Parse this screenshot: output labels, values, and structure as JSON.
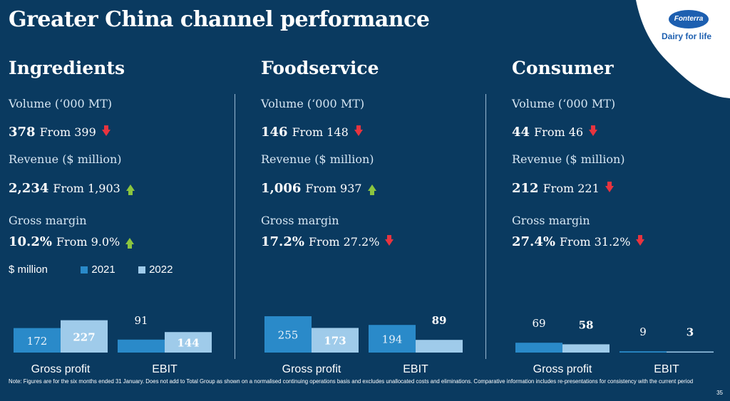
{
  "title": "Greater China channel performance",
  "logo": {
    "brand": "Fonterra",
    "tagline": "Dairy for life"
  },
  "colors": {
    "bg": "#0a3a60",
    "series_2021": "#2a8ac9",
    "series_2022": "#9fcbea",
    "down": "#e8343f",
    "up": "#8bc53f"
  },
  "legend": {
    "unit": "$ million",
    "y2021": "2021",
    "y2022": "2022"
  },
  "columns": [
    {
      "name": "Ingredients",
      "volume_label": "Volume (‘000 MT)",
      "volume_value": "378",
      "volume_from": "From 399",
      "volume_trend": "down",
      "revenue_label": "Revenue ($ million)",
      "revenue_value": "2,234",
      "revenue_from": "From 1,903",
      "revenue_trend": "up",
      "margin_label": "Gross margin",
      "margin_value": "10.2%",
      "margin_from": "From 9.0%",
      "margin_trend": "up"
    },
    {
      "name": "Foodservice",
      "volume_label": "Volume (‘000 MT)",
      "volume_value": "146",
      "volume_from": "From 148",
      "volume_trend": "down",
      "revenue_label": "Revenue ($ million)",
      "revenue_value": "1,006",
      "revenue_from": "From 937",
      "revenue_trend": "up",
      "margin_label": "Gross margin",
      "margin_value": "17.2%",
      "margin_from": "From 27.2%",
      "margin_trend": "down"
    },
    {
      "name": "Consumer",
      "volume_label": "Volume (‘000 MT)",
      "volume_value": "44",
      "volume_from": "From 46",
      "volume_trend": "down",
      "revenue_label": "Revenue ($ million)",
      "revenue_value": "212",
      "revenue_from": "From 221",
      "revenue_trend": "down",
      "margin_label": "Gross margin",
      "margin_value": "27.4%",
      "margin_from": "From 31.2%",
      "margin_trend": "down"
    }
  ],
  "chart_data": [
    {
      "type": "bar",
      "title": "Ingredients",
      "categories": [
        "Gross profit",
        "EBIT"
      ],
      "series": [
        {
          "name": "2021",
          "values": [
            172,
            91
          ]
        },
        {
          "name": "2022",
          "values": [
            227,
            144
          ]
        }
      ],
      "ylim": [
        0,
        260
      ]
    },
    {
      "type": "bar",
      "title": "Foodservice",
      "categories": [
        "Gross profit",
        "EBIT"
      ],
      "series": [
        {
          "name": "2021",
          "values": [
            255,
            194
          ]
        },
        {
          "name": "2022",
          "values": [
            173,
            89
          ]
        }
      ],
      "ylim": [
        0,
        260
      ]
    },
    {
      "type": "bar",
      "title": "Consumer",
      "categories": [
        "Gross profit",
        "EBIT"
      ],
      "series": [
        {
          "name": "2021",
          "values": [
            69,
            9
          ]
        },
        {
          "name": "2022",
          "values": [
            58,
            3
          ]
        }
      ],
      "ylim": [
        0,
        260
      ]
    }
  ],
  "note": "Note: Figures are for the six months ended 31 January. Does not add to Total Group as shown on a normalised continuing operations basis and excludes unallocated costs and eliminations. Comparative information includes re-presentations for consistency with the current period",
  "page_number": "35"
}
